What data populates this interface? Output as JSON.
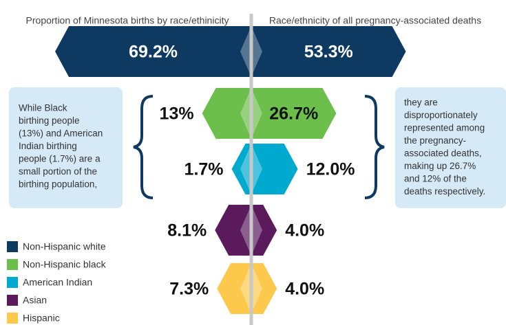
{
  "chart_data": {
    "type": "butterfly",
    "left_title": "Proportion of Minnesota births by race/ethinicity",
    "right_title": "Race/ethnicity of all pregnancy-associated deaths",
    "categories": [
      "Non-Hispanic white",
      "Non-Hispanic black",
      "American Indian",
      "Asian",
      "Hispanic"
    ],
    "colors": [
      "#0e3a62",
      "#6cbf4a",
      "#00aacf",
      "#5a1a5c",
      "#fdc94c"
    ],
    "label_colors": [
      "#ffffff",
      "#111111",
      "#111111",
      "#111111",
      "#111111"
    ],
    "series": [
      {
        "name": "Proportion of Minnesota births",
        "values": [
          69.2,
          13,
          1.7,
          8.1,
          7.3
        ],
        "value_labels": [
          "69.2%",
          "13%",
          "1.7%",
          "8.1%",
          "7.3%"
        ]
      },
      {
        "name": "Pregnancy-associated deaths",
        "values": [
          53.3,
          26.7,
          12.0,
          4.0,
          4.0
        ],
        "value_labels": [
          "53.3%",
          "26.7%",
          "12.0%",
          "4.0%",
          "4.0%"
        ]
      }
    ],
    "annotations": {
      "left": [
        "While Black",
        "birthing people",
        "(13%) and American",
        "Indian birthing",
        "people (1.7%) are a",
        "small portion of the",
        "birthing population,"
      ],
      "right": [
        "they are",
        "disproportionately",
        "represented among",
        "the pregnancy-",
        "associated deaths,",
        "making up 26.7%",
        "and 12% of the",
        "deaths respectively."
      ]
    },
    "legend": "bottom-left"
  }
}
